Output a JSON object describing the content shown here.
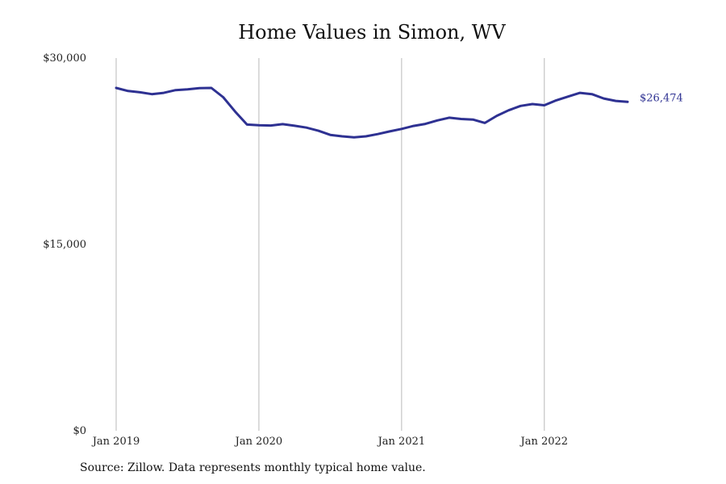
{
  "title": "Home Values in Simon, WV",
  "source_note": "Source: Zillow. Data represents monthly typical home value.",
  "colors": {
    "line": "#2e3192",
    "grid": "#b9b9b9",
    "text": "#222222"
  },
  "chart_data": {
    "type": "line",
    "title": "Home Values in Simon, WV",
    "xlabel": "",
    "ylabel": "",
    "ylim": [
      0,
      30000
    ],
    "yticks": [
      {
        "value": 0,
        "label": "$0"
      },
      {
        "value": 15000,
        "label": "$15,000"
      },
      {
        "value": 30000,
        "label": "$30,000"
      }
    ],
    "xticks": [
      {
        "value": "2019-01",
        "label": "Jan 2019"
      },
      {
        "value": "2020-01",
        "label": "Jan 2020"
      },
      {
        "value": "2021-01",
        "label": "Jan 2021"
      },
      {
        "value": "2022-01",
        "label": "Jan 2022"
      }
    ],
    "grid": {
      "vertical": true,
      "horizontal": false
    },
    "end_label": "$26,474",
    "series": [
      {
        "x": [
          "2019-01",
          "2019-02",
          "2019-03",
          "2019-04",
          "2019-05",
          "2019-06",
          "2019-07",
          "2019-08",
          "2019-09",
          "2019-10",
          "2019-11",
          "2019-12",
          "2020-01",
          "2020-02",
          "2020-03",
          "2020-04",
          "2020-05",
          "2020-06",
          "2020-07",
          "2020-08",
          "2020-09",
          "2020-10",
          "2020-11",
          "2020-12",
          "2021-01",
          "2021-02",
          "2021-03",
          "2021-04",
          "2021-05",
          "2021-06",
          "2021-07",
          "2021-08",
          "2021-09",
          "2021-10",
          "2021-11",
          "2021-12",
          "2022-01",
          "2022-02",
          "2022-03",
          "2022-04",
          "2022-05",
          "2022-06",
          "2022-07",
          "2022-08"
        ],
        "values": [
          27600,
          27350,
          27250,
          27100,
          27200,
          27420,
          27480,
          27580,
          27600,
          26850,
          25700,
          24650,
          24600,
          24570,
          24680,
          24550,
          24400,
          24150,
          23820,
          23700,
          23620,
          23700,
          23880,
          24100,
          24300,
          24540,
          24700,
          24980,
          25200,
          25100,
          25050,
          24780,
          25350,
          25800,
          26150,
          26300,
          26200,
          26600,
          26900,
          27200,
          27100,
          26750,
          26550,
          26474
        ]
      }
    ]
  }
}
